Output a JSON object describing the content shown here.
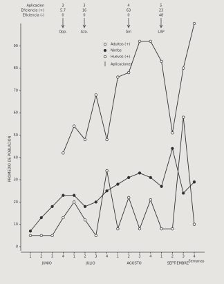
{
  "chart_data": {
    "type": "line",
    "y_label": "PROMEDIO DE POBLACION",
    "x_label": "Semanas",
    "categories": [
      "1",
      "2",
      "3",
      "4",
      "1",
      "2",
      "3",
      "4",
      "1",
      "2",
      "3",
      "4",
      "1",
      "2",
      "3",
      "4"
    ],
    "months": [
      "JUNIO",
      "JULIO",
      "AGOSTO",
      "SEPTIEMBRE"
    ],
    "ylim": [
      0,
      100
    ],
    "yticks": [
      0,
      10,
      20,
      30,
      40,
      50,
      60,
      70,
      80,
      90
    ],
    "series": [
      {
        "name": "Adultos (+)",
        "marker": "open",
        "color": "#333333",
        "values": [
          null,
          null,
          null,
          42,
          54,
          48,
          68,
          48,
          76,
          78,
          92,
          92,
          83,
          51,
          80,
          100
        ]
      },
      {
        "name": "Ninfos",
        "marker": "filled",
        "color": "#333333",
        "values": [
          7,
          13,
          18,
          23,
          23,
          18,
          20,
          25,
          28,
          31,
          33,
          31,
          27,
          44,
          24,
          29
        ]
      },
      {
        "name": "Huevos (+)",
        "marker": "open",
        "color": "#333333",
        "values": [
          5,
          5,
          5,
          13,
          20,
          12,
          5,
          34,
          8,
          22,
          8,
          21,
          8,
          8,
          58,
          10
        ]
      }
    ],
    "applications_label": "Aplicaciones",
    "table_rows": [
      "Aplicacion",
      "Eficiencia (+)",
      "Eficiencia (-)"
    ],
    "applications": [
      {
        "product": "Opp.",
        "values": [
          "3",
          "5.7",
          "0"
        ]
      },
      {
        "product": "Aza.",
        "values": [
          "3",
          "16",
          "0"
        ]
      },
      {
        "product": "Am",
        "values": [
          "4",
          "63",
          "0"
        ]
      },
      {
        "product": "LAP",
        "values": [
          "5",
          "23",
          "48"
        ]
      }
    ]
  }
}
